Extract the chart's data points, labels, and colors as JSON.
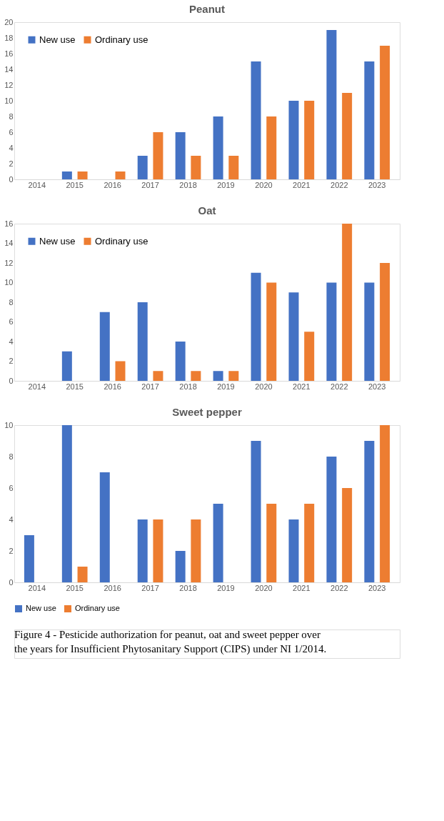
{
  "chart_data": [
    {
      "type": "bar",
      "title": "Peanut",
      "categories": [
        "2014",
        "2015",
        "2016",
        "2017",
        "2018",
        "2019",
        "2020",
        "2021",
        "2022",
        "2023"
      ],
      "series": [
        {
          "name": "New use",
          "color": "#4472c4",
          "values": [
            0,
            1,
            0,
            3,
            6,
            8,
            15,
            10,
            19,
            15
          ]
        },
        {
          "name": "Ordinary use",
          "color": "#ed7d31",
          "values": [
            0,
            1,
            1,
            6,
            3,
            3,
            8,
            10,
            11,
            17
          ]
        }
      ],
      "ylim": [
        0,
        20
      ],
      "yticks": [
        0,
        2,
        4,
        6,
        8,
        10,
        12,
        14,
        16,
        18,
        20
      ],
      "grid": false,
      "legend": "top left"
    },
    {
      "type": "bar",
      "title": "Oat",
      "categories": [
        "2014",
        "2015",
        "2016",
        "2017",
        "2018",
        "2019",
        "2020",
        "2021",
        "2022",
        "2023"
      ],
      "series": [
        {
          "name": "New use",
          "color": "#4472c4",
          "values": [
            0,
            3,
            7,
            8,
            4,
            1,
            11,
            9,
            10,
            10
          ]
        },
        {
          "name": "Ordinary use",
          "color": "#ed7d31",
          "values": [
            0,
            0,
            2,
            1,
            1,
            1,
            10,
            5,
            16,
            12
          ]
        }
      ],
      "ylim": [
        0,
        16
      ],
      "yticks": [
        0,
        2,
        4,
        6,
        8,
        10,
        12,
        14,
        16
      ],
      "grid": false,
      "legend": "top left"
    },
    {
      "type": "bar",
      "title": "Sweet pepper",
      "categories": [
        "2014",
        "2015",
        "2016",
        "2017",
        "2018",
        "2019",
        "2020",
        "2021",
        "2022",
        "2023"
      ],
      "series": [
        {
          "name": "New use",
          "color": "#4472c4",
          "values": [
            3,
            10,
            7,
            4,
            2,
            5,
            9,
            4,
            8,
            9
          ]
        },
        {
          "name": "Ordinary use",
          "color": "#ed7d31",
          "values": [
            0,
            1,
            0,
            4,
            4,
            0,
            5,
            5,
            6,
            10
          ]
        }
      ],
      "ylim": [
        0,
        10
      ],
      "yticks": [
        0,
        2,
        4,
        6,
        8,
        10
      ],
      "grid": false,
      "legend": "bottom",
      "annotations": [
        "Figure 4 - Pesticide authorization for peanut, oat and sweet pepper over the years for Insufficient Phytosanitary Support (CIPS) under NI 1/2014."
      ]
    }
  ]
}
